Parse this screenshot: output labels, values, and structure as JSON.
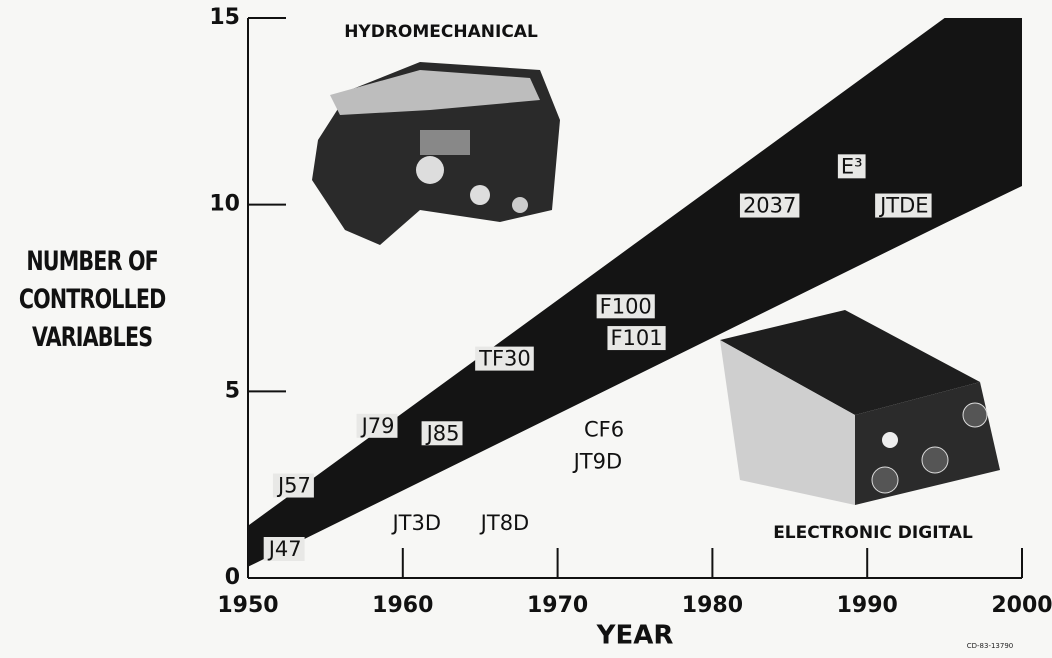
{
  "chart_data": {
    "type": "band",
    "ylabel": "NUMBER OF CONTROLLED VARIABLES",
    "xlabel": "YEAR",
    "x": [
      1950,
      1995,
      2000
    ],
    "upper": [
      1.4,
      15,
      15
    ],
    "lower": [
      0.3,
      9.5,
      10.5
    ],
    "color": "#141414",
    "xlim": [
      1950,
      2000
    ],
    "ylim": [
      0,
      15
    ],
    "xticks": [
      1950,
      1960,
      1970,
      1980,
      1990,
      2000
    ],
    "yticks": [
      0,
      5,
      10,
      15
    ],
    "labels": [
      {
        "text": "J47",
        "x": 1952.4,
        "y": 0.75,
        "boxed": true
      },
      {
        "text": "J57",
        "x": 1953.0,
        "y": 2.45,
        "boxed": true
      },
      {
        "text": "J79",
        "x": 1958.4,
        "y": 4.05,
        "boxed": true
      },
      {
        "text": "J85",
        "x": 1962.6,
        "y": 3.85,
        "boxed": true
      },
      {
        "text": "TF30",
        "x": 1966.6,
        "y": 5.85,
        "boxed": true
      },
      {
        "text": "F100",
        "x": 1974.4,
        "y": 7.25,
        "boxed": true
      },
      {
        "text": "F101",
        "x": 1975.1,
        "y": 6.4,
        "boxed": true
      },
      {
        "text": "CF6",
        "x": 1973.0,
        "y": 3.95,
        "boxed": false
      },
      {
        "text": "JT9D",
        "x": 1972.6,
        "y": 3.1,
        "boxed": false
      },
      {
        "text": "JT3D",
        "x": 1960.9,
        "y": 1.45,
        "boxed": false
      },
      {
        "text": "JT8D",
        "x": 1966.6,
        "y": 1.45,
        "boxed": false
      },
      {
        "text": "2037",
        "x": 1983.7,
        "y": 9.95,
        "boxed": true
      },
      {
        "text": "E³",
        "x": 1989.0,
        "y": 11.0,
        "boxed": true
      },
      {
        "text": "JTDE",
        "x": 1992.4,
        "y": 9.95,
        "boxed": true
      }
    ],
    "annotations": [
      "HYDROMECHANICAL",
      "ELECTRONIC DIGITAL",
      "CD-83-13790"
    ]
  }
}
